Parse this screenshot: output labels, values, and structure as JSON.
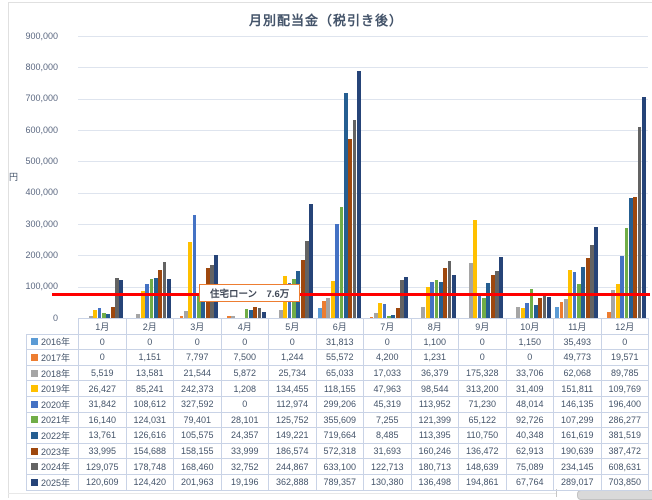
{
  "chart_data": {
    "type": "bar",
    "title": "月別配当金（税引き後）",
    "ylabel": "円",
    "ylim": [
      0,
      900000
    ],
    "ytick_step": 100000,
    "grid": true,
    "legend_position": "data-table-left",
    "categories": [
      "1月",
      "2月",
      "3月",
      "4月",
      "5月",
      "6月",
      "7月",
      "8月",
      "9月",
      "10月",
      "11月",
      "12月"
    ],
    "series": [
      {
        "name": "2016年",
        "color": "#5B9BD5",
        "values": [
          0,
          0,
          0,
          0,
          0,
          31813,
          0,
          1100,
          0,
          1150,
          35493,
          0
        ]
      },
      {
        "name": "2017年",
        "color": "#ED7D31",
        "values": [
          0,
          1151,
          7797,
          7500,
          1244,
          55572,
          4200,
          1231,
          0,
          0,
          49773,
          19571
        ]
      },
      {
        "name": "2018年",
        "color": "#A5A5A5",
        "values": [
          5519,
          13581,
          21544,
          5872,
          25734,
          65033,
          17033,
          36379,
          175328,
          33706,
          62068,
          89785
        ]
      },
      {
        "name": "2019年",
        "color": "#FFC000",
        "values": [
          26427,
          85241,
          242373,
          1208,
          134455,
          118155,
          47963,
          98544,
          313200,
          31409,
          151811,
          109769
        ]
      },
      {
        "name": "2020年",
        "color": "#4472C4",
        "values": [
          31842,
          108612,
          327592,
          0,
          112974,
          299206,
          45319,
          113952,
          71230,
          48014,
          146135,
          196400
        ]
      },
      {
        "name": "2021年",
        "color": "#70AD47",
        "values": [
          16140,
          124031,
          79401,
          28101,
          125752,
          355609,
          7255,
          121399,
          65122,
          92726,
          107299,
          286277
        ]
      },
      {
        "name": "2022年",
        "color": "#255E91",
        "values": [
          13761,
          126616,
          105575,
          24357,
          149221,
          719664,
          8485,
          113395,
          110750,
          40348,
          161619,
          381519
        ]
      },
      {
        "name": "2023年",
        "color": "#9E480E",
        "values": [
          33995,
          154688,
          158155,
          33999,
          186574,
          572318,
          31693,
          160246,
          136472,
          62913,
          190639,
          387472
        ]
      },
      {
        "name": "2024年",
        "color": "#636363",
        "values": [
          129075,
          178748,
          168460,
          32752,
          244867,
          633100,
          122713,
          180713,
          148639,
          75089,
          234145,
          608631
        ]
      },
      {
        "name": "2025年",
        "color": "#264478",
        "values": [
          120609,
          124420,
          201963,
          19196,
          362888,
          789357,
          130380,
          136498,
          194861,
          67764,
          289017,
          703850
        ]
      }
    ],
    "annotation": {
      "label": "住宅ローン　7.6万",
      "value": 76000,
      "line_color": "#FF0000"
    }
  }
}
